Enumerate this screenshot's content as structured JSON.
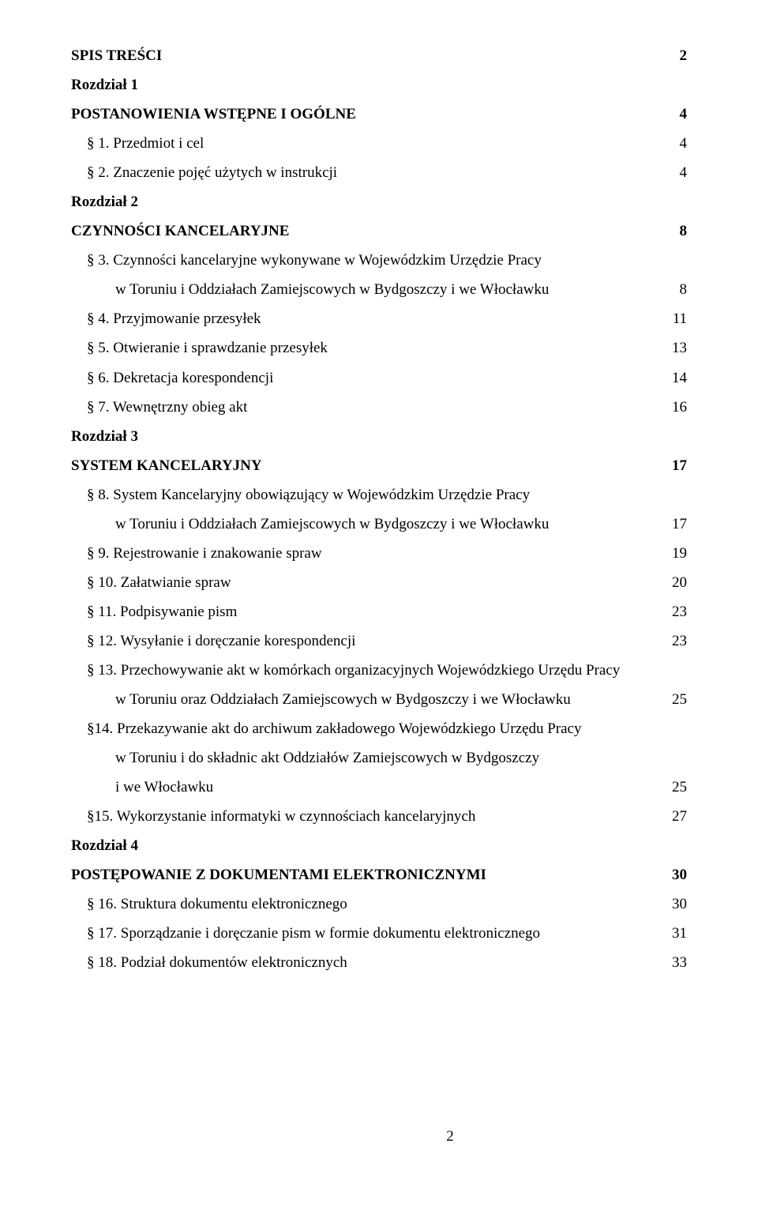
{
  "colors": {
    "text": "#000000",
    "background": "#ffffff"
  },
  "typography": {
    "font_family": "Times New Roman",
    "font_size_pt": 14,
    "line_height": 1.95
  },
  "page_number": "2",
  "lines": [
    {
      "label": "SPIS TREŚCI",
      "num": "2",
      "bold": true
    },
    {
      "label": "Rozdział 1",
      "num": "",
      "bold": true
    },
    {
      "label": "POSTANOWIENIA WSTĘPNE I OGÓLNE",
      "num": "4",
      "bold": true
    },
    {
      "label": "§ 1. Przedmiot i cel",
      "num": "4",
      "indent": true
    },
    {
      "label": "§ 2. Znaczenie pojęć użytych w instrukcji",
      "num": "4",
      "indent": true
    },
    {
      "label": "Rozdział 2",
      "num": "",
      "bold": true
    },
    {
      "label": "CZYNNOŚCI KANCELARYJNE",
      "num": "8",
      "bold": true
    },
    {
      "label": "§ 3. Czynności kancelaryjne wykonywane w Wojewódzkim Urzędzie Pracy",
      "num": "",
      "indent": true
    },
    {
      "label": "w Toruniu i  Oddziałach Zamiejscowych w Bydgoszczy i we Włocławku",
      "num": "8",
      "indent2": true
    },
    {
      "label": "§ 4. Przyjmowanie przesyłek",
      "num": "11",
      "indent": true
    },
    {
      "label": "§ 5. Otwieranie i sprawdzanie przesyłek",
      "num": "13",
      "indent": true
    },
    {
      "label": "§ 6. Dekretacja korespondencji",
      "num": "14",
      "indent": true
    },
    {
      "label": "§ 7. Wewnętrzny obieg akt",
      "num": "16",
      "indent": true
    },
    {
      "label": "Rozdział 3",
      "num": "",
      "bold": true
    },
    {
      "label": "SYSTEM KANCELARYJNY",
      "num": "17",
      "bold": true
    },
    {
      "label": "§ 8. System Kancelaryjny obowiązujący w Wojewódzkim Urzędzie Pracy",
      "num": "",
      "indent": true
    },
    {
      "label": "w Toruniu i Oddziałach Zamiejscowych w Bydgoszczy i we Włocławku",
      "num": "17",
      "indent2": true
    },
    {
      "label": "§ 9. Rejestrowanie i znakowanie spraw",
      "num": "19",
      "indent": true
    },
    {
      "label": "§ 10. Załatwianie spraw",
      "num": "20",
      "indent": true
    },
    {
      "label": "§ 11.  Podpisywanie pism",
      "num": "23",
      "indent": true
    },
    {
      "label": "§ 12. Wysyłanie i doręczanie korespondencji",
      "num": "23",
      "indent": true
    },
    {
      "label": "§ 13. Przechowywanie akt w komórkach organizacyjnych Wojewódzkiego Urzędu Pracy",
      "num": "",
      "indent": true
    },
    {
      "label": "w Toruniu oraz Oddziałach Zamiejscowych w Bydgoszczy i we Włocławku",
      "num": "25",
      "indent2": true
    },
    {
      "label": "§14. Przekazywanie akt do archiwum zakładowego Wojewódzkiego Urzędu Pracy",
      "num": "",
      "indent": true
    },
    {
      "label": "w Toruniu i do składnic akt  Oddziałów Zamiejscowych w Bydgoszczy",
      "num": "",
      "indent2": true
    },
    {
      "label": "i we Włocławku",
      "num": "25",
      "indent2": true
    },
    {
      "label": "§15. Wykorzystanie informatyki w czynnościach kancelaryjnych",
      "num": "27",
      "indent": true
    },
    {
      "label": "Rozdział 4",
      "num": "",
      "bold": true
    },
    {
      "label": "POSTĘPOWANIE Z DOKUMENTAMI ELEKTRONICZNYMI",
      "num": "30",
      "bold": true
    },
    {
      "label": "§ 16. Struktura dokumentu elektronicznego",
      "num": "30",
      "indent": true
    },
    {
      "label": "§ 17. Sporządzanie i doręczanie pism w formie dokumentu elektronicznego",
      "num": "31",
      "indent": true
    },
    {
      "label": "§ 18. Podział dokumentów elektronicznych",
      "num": "33",
      "indent": true
    }
  ]
}
